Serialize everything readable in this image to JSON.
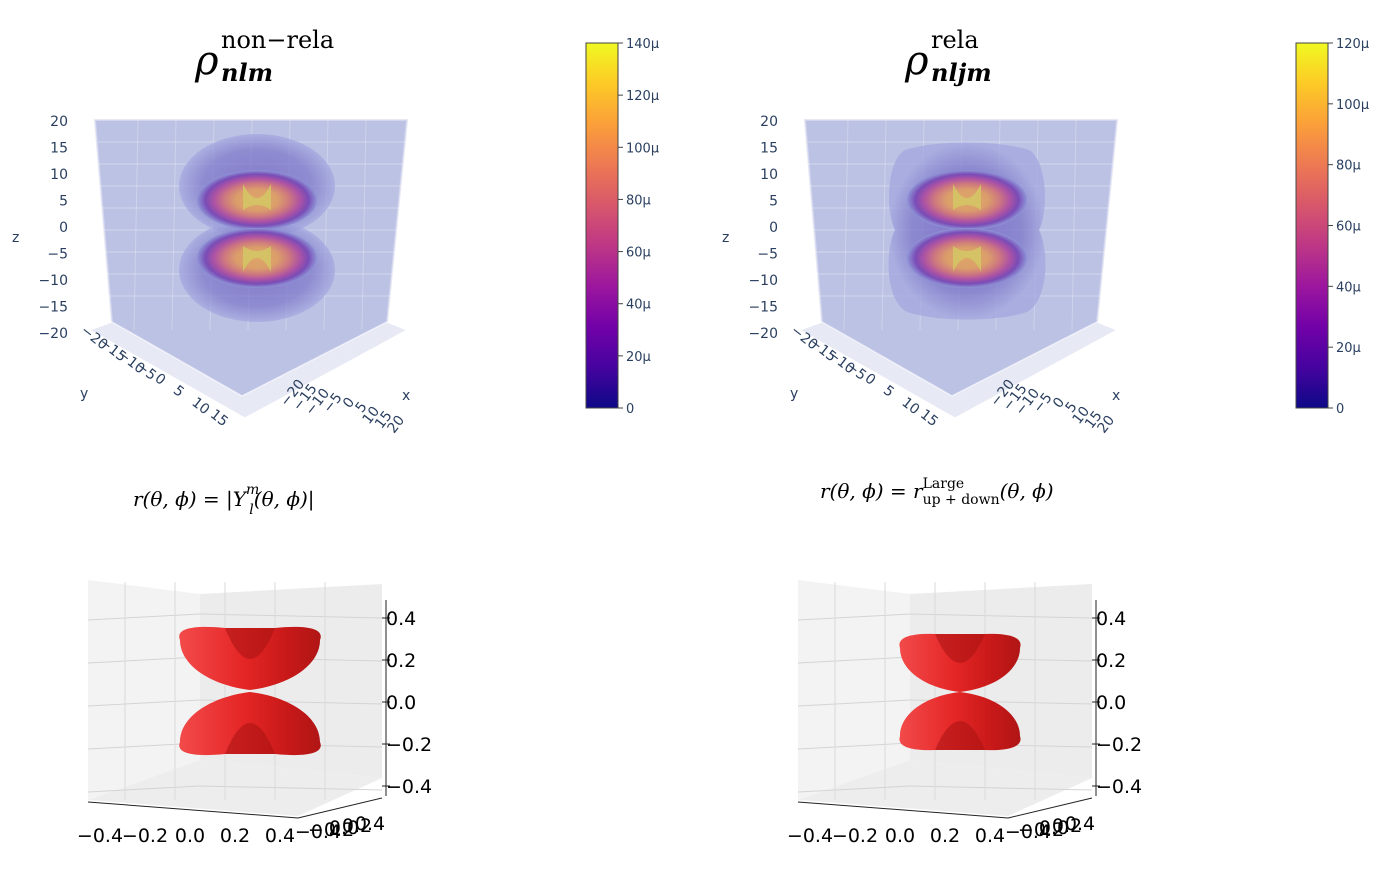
{
  "chart_data": [
    {
      "type": "volume-3d",
      "title": {
        "symbol": "ρ",
        "superscript": "non−rela",
        "subscript": "nlm"
      },
      "axes": {
        "x": {
          "label": "x",
          "ticks": [
            "20",
            "15",
            "10",
            "5",
            "0",
            "−5",
            "−10",
            "−15",
            "−20"
          ]
        },
        "y": {
          "label": "y",
          "ticks": [
            "−20",
            "−15",
            "−10",
            "−5",
            "0",
            "5",
            "10",
            "15"
          ]
        },
        "z": {
          "label": "z",
          "ticks": [
            "20",
            "15",
            "10",
            "5",
            "0",
            "−5",
            "−10",
            "−15",
            "−20"
          ]
        }
      },
      "colorbar": {
        "min": 0,
        "max": 140,
        "ticks": [
          "0",
          "20μ",
          "40μ",
          "60μ",
          "80μ",
          "100μ",
          "120μ",
          "140μ"
        ],
        "colorscale": "plasma"
      },
      "shape": "two stacked toroidal lobes along z"
    },
    {
      "type": "volume-3d",
      "title": {
        "symbol": "ρ",
        "superscript": "rela",
        "subscript": "nljm"
      },
      "axes": {
        "x": {
          "label": "x",
          "ticks": [
            "20",
            "15",
            "10",
            "5",
            "0",
            "−5",
            "−10",
            "−15",
            "−20"
          ]
        },
        "y": {
          "label": "y",
          "ticks": [
            "−20",
            "−15",
            "−10",
            "−5",
            "0",
            "5",
            "10",
            "15"
          ]
        },
        "z": {
          "label": "z",
          "ticks": [
            "20",
            "15",
            "10",
            "5",
            "0",
            "−5",
            "−10",
            "−15",
            "−20"
          ]
        }
      },
      "colorbar": {
        "min": 0,
        "max": 120,
        "ticks": [
          "0",
          "20μ",
          "40μ",
          "60μ",
          "80μ",
          "100μ",
          "120μ"
        ],
        "colorscale": "plasma"
      },
      "shape": "two stacked lobes, merged at the waist"
    },
    {
      "type": "surface-3d",
      "formula": {
        "lhs": "r(θ, ϕ)",
        "rhs": "|Y",
        "sup": "m",
        "sub": "l",
        "tail": "(θ, ϕ)|"
      },
      "axes": {
        "x": {
          "ticks": [
            "−0.4",
            "−0.2",
            "0.0",
            "0.2",
            "0.4"
          ]
        },
        "y": {
          "ticks": [
            "−0.4",
            "−0.2",
            "0.0",
            "0.2",
            "0.4"
          ]
        },
        "z": {
          "ticks": [
            "0.4",
            "0.2",
            "0.0",
            "−0.2",
            "−0.4"
          ]
        }
      },
      "color": "#d81e1e"
    },
    {
      "type": "surface-3d",
      "formula": {
        "lhs": "r(θ, ϕ)",
        "rhs": "r",
        "sup": "Large",
        "sub": "up + down",
        "tail": "(θ, ϕ)"
      },
      "axes": {
        "x": {
          "ticks": [
            "−0.4",
            "−0.2",
            "0.0",
            "0.2",
            "0.4"
          ]
        },
        "y": {
          "ticks": [
            "−0.4",
            "−0.2",
            "0.0",
            "0.2",
            "0.4"
          ]
        },
        "z": {
          "ticks": [
            "0.4",
            "0.2",
            "0.0",
            "−0.2",
            "−0.4"
          ]
        }
      },
      "color": "#d81e1e"
    }
  ]
}
